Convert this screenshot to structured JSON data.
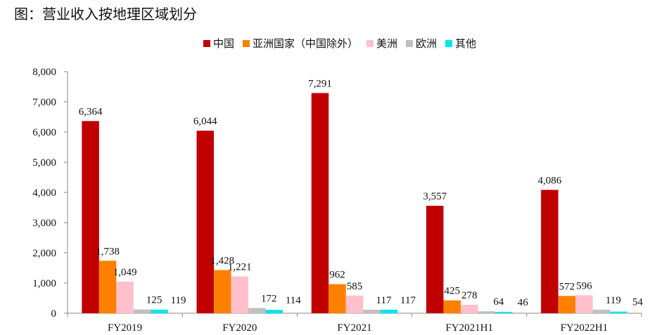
{
  "figure_title": "图：营业收入按地理区域划分",
  "chart_data": {
    "type": "bar",
    "title": "",
    "xlabel": "",
    "ylabel": "",
    "ylim": [
      0,
      8000
    ],
    "yticks": [
      "0",
      "1,000",
      "2,000",
      "3,000",
      "4,000",
      "5,000",
      "6,000",
      "7,000",
      "8,000"
    ],
    "grid": false,
    "legend_position": "top",
    "categories": [
      "FY2019",
      "FY2020",
      "FY2021",
      "FY2021H1",
      "FY2022H1"
    ],
    "series": [
      {
        "name": "中国",
        "color": "#C00000",
        "values": [
          6364,
          6044,
          7291,
          3557,
          4086
        ],
        "labels": [
          "6,364",
          "6,044",
          "7,291",
          "3,557",
          "4,086"
        ]
      },
      {
        "name": "亚洲国家（中国除外）",
        "color": "#FF8000",
        "values": [
          1738,
          1428,
          962,
          425,
          572
        ],
        "labels": [
          "1,738",
          "1,428",
          "962",
          "425",
          "572"
        ]
      },
      {
        "name": "美洲",
        "color": "#FFC0CB",
        "values": [
          1049,
          1221,
          585,
          278,
          596
        ],
        "labels": [
          "1,049",
          "1,221",
          "585",
          "278",
          "596"
        ]
      },
      {
        "name": "欧洲",
        "color": "#C0C0C0",
        "values": [
          125,
          172,
          117,
          64,
          119
        ],
        "labels": [
          "125",
          "172",
          "117",
          "64",
          "119"
        ]
      },
      {
        "name": "其他",
        "color": "#00E5EE",
        "values": [
          119,
          114,
          117,
          46,
          54
        ],
        "labels": [
          "119",
          "114",
          "117",
          "46",
          "54"
        ]
      }
    ]
  }
}
